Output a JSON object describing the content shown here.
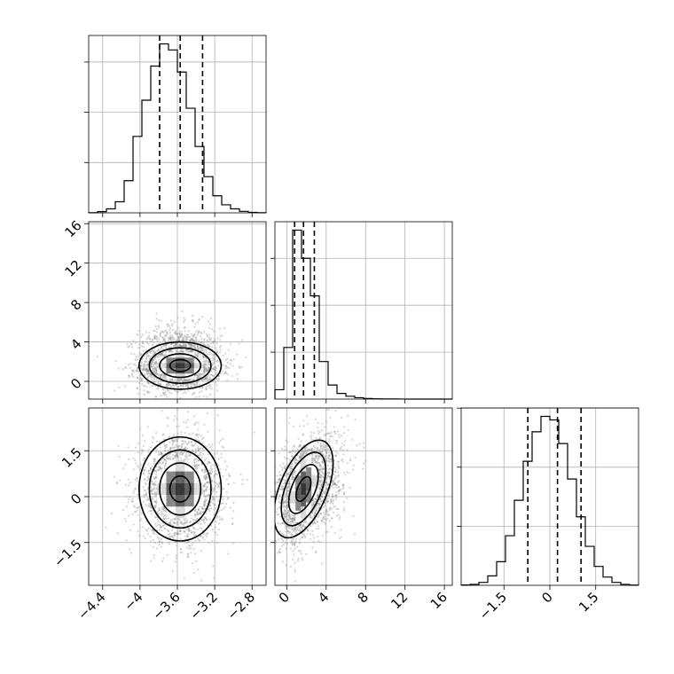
{
  "chart_data": [
    {
      "type": "histogram",
      "panel": "hist-param-1",
      "x_ticks": [
        -4.4,
        -4.0,
        -3.6,
        -3.2,
        -2.8
      ],
      "xlim": [
        -4.55,
        -2.65
      ],
      "bins": [
        -4.55,
        -4.455,
        -4.36,
        -4.265,
        -4.17,
        -4.075,
        -3.98,
        -3.885,
        -3.79,
        -3.695,
        -3.6,
        -3.505,
        -3.41,
        -3.315,
        -3.22,
        -3.125,
        -3.03,
        -2.935,
        -2.84,
        -2.745,
        -2.65
      ],
      "counts": [
        1,
        12,
        40,
        110,
        320,
        760,
        1120,
        1460,
        1680,
        1620,
        1400,
        1040,
        660,
        360,
        170,
        80,
        40,
        15,
        5,
        1
      ],
      "quantiles": [
        -3.79,
        -3.57,
        -3.33
      ],
      "grid": true
    },
    {
      "type": "histogram",
      "panel": "hist-param-2",
      "x_ticks": [
        0,
        4,
        8,
        12,
        16
      ],
      "xlim": [
        -1.2,
        16.8
      ],
      "bins": [
        -1.2,
        -0.3,
        0.6,
        1.5,
        2.4,
        3.3,
        4.2,
        5.1,
        6.0,
        6.9,
        7.8,
        8.7,
        9.6,
        10.5,
        11.4,
        12.3,
        13.2,
        14.1,
        15.0,
        15.9,
        16.8
      ],
      "counts": [
        200,
        1100,
        3600,
        3000,
        2200,
        800,
        300,
        120,
        60,
        30,
        12,
        6,
        3,
        2,
        1,
        0,
        0,
        0,
        0,
        0
      ],
      "quantiles": [
        0.8,
        1.7,
        2.8
      ],
      "grid": true
    },
    {
      "type": "histogram",
      "panel": "hist-param-3",
      "x_ticks": [
        -1.5,
        0.0,
        1.5
      ],
      "xlim": [
        -2.9,
        2.9
      ],
      "bins": [
        -2.9,
        -2.61,
        -2.32,
        -2.03,
        -1.74,
        -1.45,
        -1.16,
        -0.87,
        -0.58,
        -0.29,
        0.0,
        0.29,
        0.58,
        0.87,
        1.16,
        1.45,
        1.74,
        2.03,
        2.32,
        2.61,
        2.9
      ],
      "counts": [
        3,
        8,
        25,
        80,
        200,
        420,
        720,
        1050,
        1300,
        1430,
        1400,
        1200,
        900,
        580,
        330,
        160,
        70,
        25,
        8,
        2
      ],
      "quantiles": [
        -0.72,
        0.25,
        1.02
      ],
      "grid": true
    },
    {
      "type": "scatter-density",
      "panel": "density-param-1-vs-param-2",
      "x_ticks": [
        -4.4,
        -4.0,
        -3.6,
        -3.2,
        -2.8
      ],
      "y_ticks": [
        0,
        4,
        8,
        12,
        16
      ],
      "xlim": [
        -4.55,
        -2.65
      ],
      "ylim": [
        -1.8,
        16.2
      ],
      "center": [
        -3.57,
        1.6
      ],
      "spread": [
        0.22,
        1.2
      ],
      "correlation": 0.0,
      "grid": true
    },
    {
      "type": "scatter-density",
      "panel": "density-param-1-vs-param-3",
      "x_ticks": [
        -4.4,
        -4.0,
        -3.6,
        -3.2,
        -2.8
      ],
      "y_ticks": [
        -1.5,
        0.0,
        1.5
      ],
      "xlim": [
        -4.55,
        -2.65
      ],
      "ylim": [
        -2.9,
        2.9
      ],
      "center": [
        -3.57,
        0.25
      ],
      "spread": [
        0.22,
        0.85
      ],
      "correlation": 0.0,
      "grid": true
    },
    {
      "type": "scatter-density",
      "panel": "density-param-2-vs-param-3",
      "x_ticks": [
        0,
        4,
        8,
        12,
        16
      ],
      "y_ticks": [
        -1.5,
        0.0,
        1.5
      ],
      "xlim": [
        -1.2,
        16.8
      ],
      "ylim": [
        -2.9,
        2.9
      ],
      "center": [
        1.7,
        0.25
      ],
      "spread": [
        1.2,
        0.85
      ],
      "correlation": 0.35,
      "grid": true
    }
  ]
}
